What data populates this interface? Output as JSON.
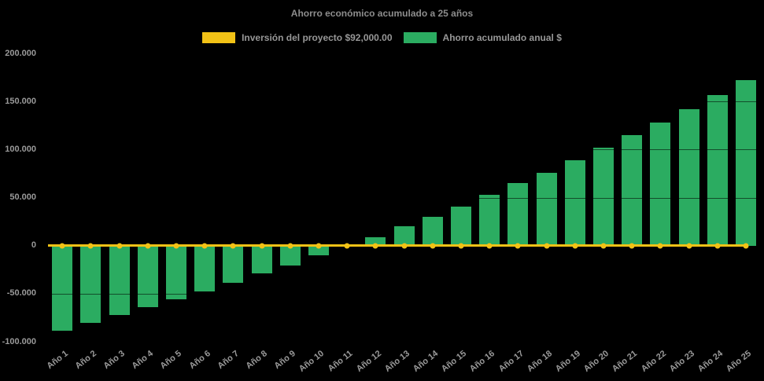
{
  "page": {
    "background": "#000000"
  },
  "header": {
    "title": "Ahorro económico acumulado a 25 años"
  },
  "legend": {
    "items": [
      {
        "label": "Inversión del proyecto $92,000.00",
        "color": "#f2c216"
      },
      {
        "label": "Ahorro acumulado anual $",
        "color": "#2bac61"
      }
    ]
  },
  "chart_data": {
    "type": "bar",
    "title": "Ahorro económico acumulado a 25 años",
    "categories": [
      "Año 1",
      "Año 2",
      "Año 3",
      "Año 4",
      "Año 5",
      "Año 6",
      "Año 7",
      "Año 8",
      "Año 9",
      "Año 10",
      "Año 11",
      "Año 12",
      "Año 13",
      "Año 14",
      "Año 15",
      "Año 16",
      "Año 17",
      "Año 18",
      "Año 19",
      "Año 20",
      "Año 21",
      "Año 22",
      "Año 23",
      "Año 24",
      "Año 25"
    ],
    "series": [
      {
        "name": "Inversión del proyecto $92,000.00",
        "type": "line",
        "color": "#f2c216",
        "values": [
          0,
          0,
          0,
          0,
          0,
          0,
          0,
          0,
          0,
          0,
          0,
          0,
          0,
          0,
          0,
          0,
          0,
          0,
          0,
          0,
          0,
          0,
          0,
          0,
          0
        ]
      },
      {
        "name": "Ahorro acumulado anual $",
        "type": "bar",
        "color": "#2bac61",
        "values": [
          -88500,
          -80000,
          -72500,
          -64000,
          -55500,
          -48000,
          -38500,
          -29000,
          -21000,
          -10000,
          -500,
          9000,
          20500,
          30000,
          40500,
          53000,
          65000,
          75500,
          89000,
          101500,
          115000,
          128000,
          142000,
          157000,
          172000
        ]
      }
    ],
    "ylim": [
      -100000,
      200000
    ],
    "yticks": [
      {
        "value": 200000,
        "label": "200.000"
      },
      {
        "value": 150000,
        "label": "150.000"
      },
      {
        "value": 100000,
        "label": "100.000"
      },
      {
        "value": 50000,
        "label": "50.000"
      },
      {
        "value": 0,
        "label": "0"
      },
      {
        "value": -50000,
        "label": "-50.000"
      },
      {
        "value": -100000,
        "label": "-100.000"
      }
    ],
    "xlabel": "",
    "ylabel": "",
    "legend_position": "top",
    "grid": true,
    "background": "#000000",
    "text_color": "#9a9a9a"
  }
}
